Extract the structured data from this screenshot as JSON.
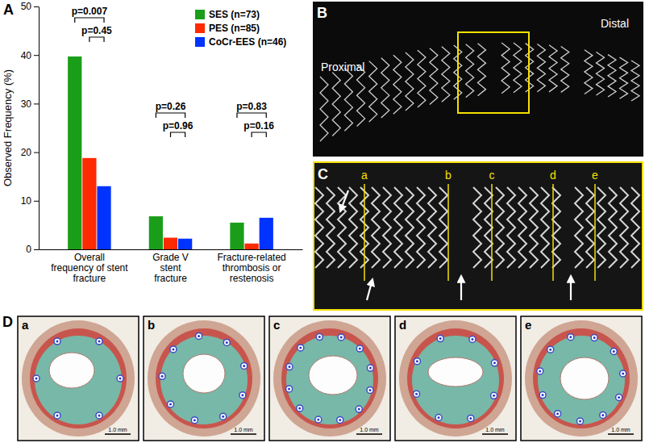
{
  "chart_data": {
    "type": "bar",
    "y_label": "Observed Frequency (%)",
    "categories": [
      "Overall\nfrequency of stent\nfracture",
      "Grade V\nstent\nfracture",
      "Fracture-related\nthrombosis or\nrestenosis"
    ],
    "series": [
      {
        "name": "SES (n=73)",
        "color": "#1a9e1a",
        "values": [
          39.7,
          6.8,
          5.5
        ]
      },
      {
        "name": "PES (n=85)",
        "color": "#ff2a00",
        "values": [
          18.8,
          2.4,
          1.2
        ]
      },
      {
        "name": "CoCr-EES (n=46)",
        "color": "#0033ff",
        "values": [
          13.0,
          2.2,
          6.5
        ]
      }
    ],
    "ylim": [
      0,
      50
    ],
    "yticks": [
      0,
      10,
      20,
      30,
      40,
      50
    ],
    "legend": "top-right",
    "annotations": [
      [
        "p=0.007",
        "p=0.45"
      ],
      [
        "p=0.26",
        "p=0.96"
      ],
      [
        "p=0.83",
        "p=0.16"
      ]
    ]
  },
  "figure": {
    "panel_labels": [
      "A",
      "B",
      "C",
      "D"
    ],
    "panel_b": {
      "proximal_label": "Proximal",
      "distal_label": "Distal"
    },
    "panel_c": {
      "section_labels": [
        "a",
        "b",
        "c",
        "d",
        "e"
      ]
    },
    "panel_d": {
      "section_labels": [
        "a",
        "b",
        "c",
        "d",
        "e"
      ],
      "scale_bar_labels": [
        "1.0 mm",
        "1.0 mm",
        "1.0 mm",
        "1.0 mm",
        "1.0 mm"
      ]
    }
  }
}
